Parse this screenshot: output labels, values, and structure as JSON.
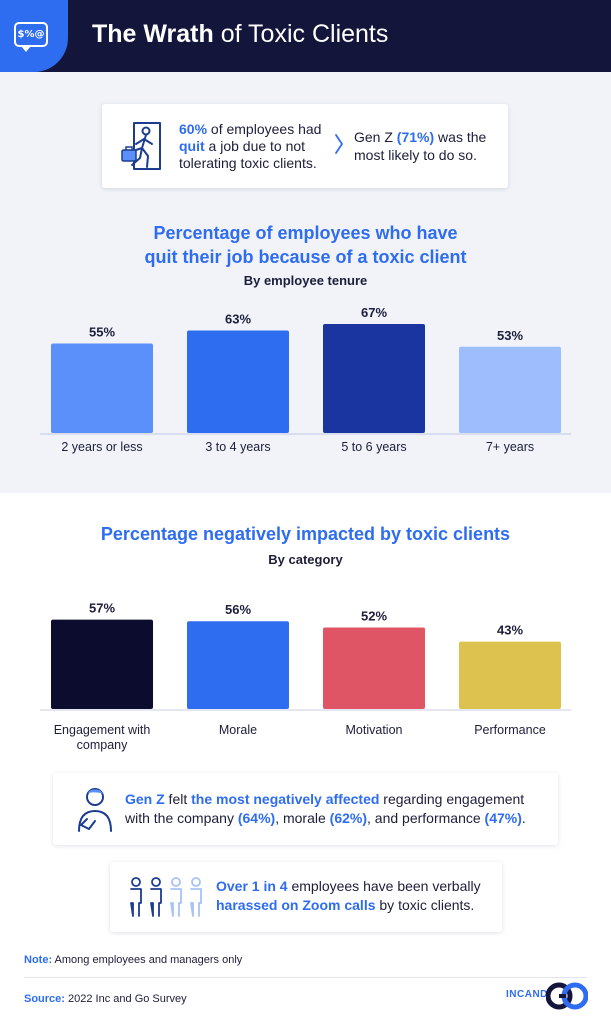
{
  "header": {
    "badge_text": "$%@",
    "title_bold": "The Wrath",
    "title_rest": " of Toxic Clients"
  },
  "stat_card": {
    "left_highlight": "60%",
    "left_part1": " of employees had ",
    "left_highlight2": "quit",
    "left_part2": " a job due to not tolerating toxic clients.",
    "right_part1": "Gen Z ",
    "right_highlight": "(71%)",
    "right_part2": " was the most likely to do so."
  },
  "chart1": {
    "title_line1": "Percentage of employees who have",
    "title_line2": "quit their job because of a toxic client",
    "subtitle": "By employee tenure"
  },
  "chart2": {
    "title": "Percentage negatively impacted by toxic clients",
    "subtitle": "By category"
  },
  "genz_card": {
    "h1": "Gen Z",
    "t1": " felt ",
    "h2": "the most negatively affected",
    "t2": " regarding engagement with the company ",
    "h3": "(64%)",
    "t3": ", morale ",
    "h4": "(62%)",
    "t4": ", and performance ",
    "h5": "(47%)",
    "t5": "."
  },
  "zoom_card": {
    "h1": "Over 1 in 4",
    "t1": " employees have been verbally ",
    "h2": "harassed on Zoom calls",
    "t2": " by toxic clients."
  },
  "footer": {
    "note_label": "Note:",
    "note_text": " Among employees and managers only",
    "source_label": "Source:",
    "source_text": " 2022 Inc and Go Survey",
    "brand_text": "INCAND"
  },
  "chart_data": [
    {
      "type": "bar",
      "title": "Percentage of employees who have quit their job because of a toxic client",
      "subtitle": "By employee tenure",
      "categories": [
        "2 years or less",
        "3 to 4 years",
        "5 to 6 years",
        "7+ years"
      ],
      "values": [
        55,
        63,
        67,
        53
      ],
      "value_labels": [
        "55%",
        "63%",
        "67%",
        "53%"
      ],
      "colors": [
        "#5b8ff9",
        "#2e6cf0",
        "#1a34a0",
        "#9dbdfc"
      ],
      "xlabel": "",
      "ylabel": "",
      "ylim": [
        0,
        100
      ]
    },
    {
      "type": "bar",
      "title": "Percentage negatively impacted by toxic clients",
      "subtitle": "By category",
      "categories": [
        [
          "Engagement with",
          "company"
        ],
        [
          "Morale"
        ],
        [
          "Motivation"
        ],
        [
          "Performance"
        ]
      ],
      "values": [
        57,
        56,
        52,
        43
      ],
      "value_labels": [
        "57%",
        "56%",
        "52%",
        "43%"
      ],
      "colors": [
        "#0c0c2e",
        "#2e6cf0",
        "#e05566",
        "#ddc24f"
      ],
      "xlabel": "",
      "ylabel": "",
      "ylim": [
        0,
        100
      ]
    }
  ]
}
